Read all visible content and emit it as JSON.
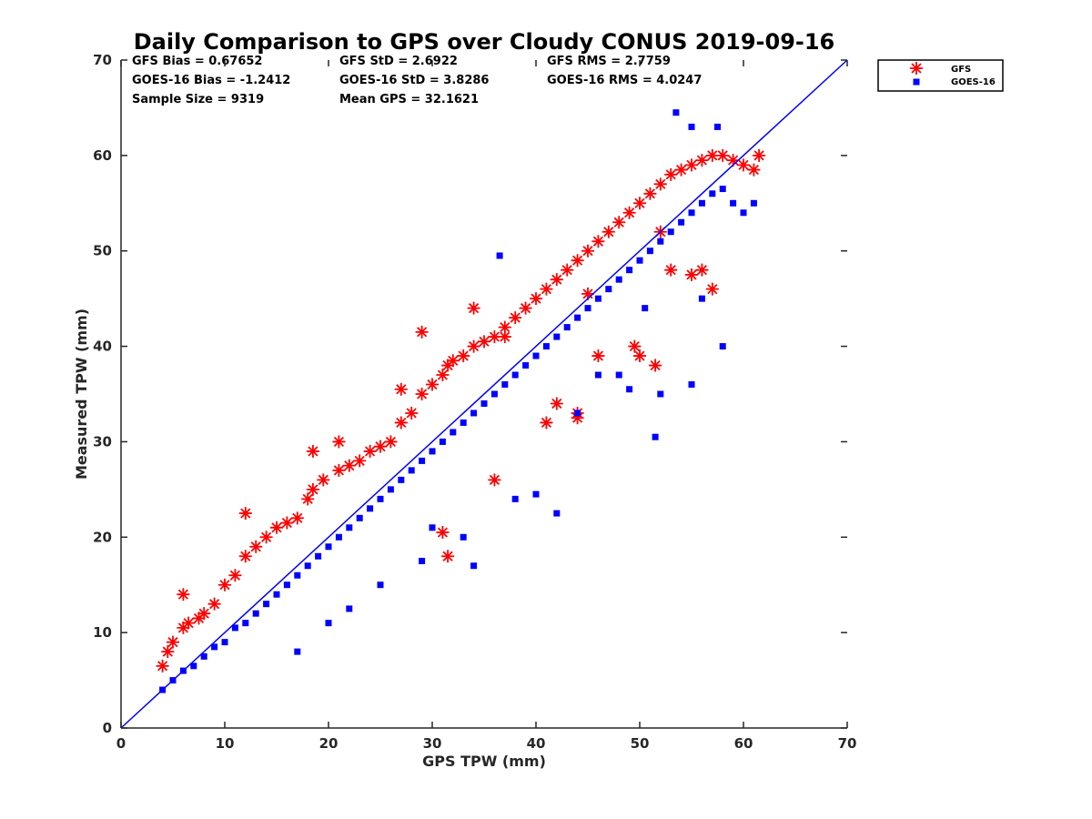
{
  "chart_data": {
    "type": "scatter",
    "title": "Daily Comparison to GPS over Cloudy CONUS 2019-09-16",
    "xlabel": "GPS TPW (mm)",
    "ylabel": "Measured TPW (mm)",
    "xlim": [
      0,
      70
    ],
    "ylim": [
      0,
      70
    ],
    "xticks": [
      "0",
      "10",
      "20",
      "30",
      "40",
      "50",
      "60",
      "70"
    ],
    "yticks": [
      "0",
      "10",
      "20",
      "30",
      "40",
      "50",
      "60",
      "70"
    ],
    "grid": false,
    "legend_position": "outside-top-right",
    "reference_line": {
      "from": [
        0,
        0
      ],
      "to": [
        70,
        70
      ],
      "color": "#0000ff"
    },
    "stats": [
      [
        "GFS Bias = 0.67652",
        "GFS StD = 2.6922",
        "GFS RMS = 2.7759"
      ],
      [
        "GOES-16 Bias = -1.2412",
        "GOES-16 StD = 3.8286",
        "GOES-16 RMS = 4.0247"
      ],
      [
        "Sample Size = 9319",
        "Mean GPS = 32.1621",
        ""
      ]
    ],
    "series": [
      {
        "name": "GFS",
        "marker": "asterisk",
        "color": "#ff0000",
        "sample_size": 9319,
        "x": [
          4,
          4.5,
          5,
          6,
          6.5,
          7.5,
          8,
          9,
          10,
          11,
          12,
          13,
          14,
          15,
          16,
          17,
          18,
          18.5,
          19.5,
          21,
          22,
          23,
          24,
          25,
          26,
          27,
          28,
          29,
          30,
          31,
          31.5,
          32,
          33,
          34,
          35,
          36,
          37,
          38,
          39,
          40,
          41,
          42,
          43,
          44,
          45,
          46,
          47,
          48,
          49,
          50,
          51,
          52,
          53,
          54,
          55,
          56,
          57,
          58,
          59,
          60,
          61,
          61.5,
          6,
          12,
          18.5,
          21,
          27,
          29,
          31,
          31.5,
          34,
          37,
          41,
          44,
          46,
          50,
          53,
          56,
          57,
          52,
          55,
          49.5,
          51.5,
          42,
          44,
          36,
          45
        ],
        "y": [
          6.5,
          8,
          9,
          10.5,
          11,
          11.5,
          12,
          13,
          15,
          16,
          18,
          19,
          20,
          21,
          21.5,
          22,
          24,
          25,
          26,
          27,
          27.5,
          28,
          29,
          29.5,
          30,
          32,
          33,
          35,
          36,
          37,
          38,
          38.5,
          39,
          40,
          40.5,
          41,
          42,
          43,
          44,
          45,
          46,
          47,
          48,
          49,
          50,
          51,
          52,
          53,
          54,
          55,
          56,
          57,
          58,
          58.5,
          59,
          59.5,
          60,
          60,
          59.5,
          59,
          58.5,
          60,
          14,
          22.5,
          29,
          30,
          35.5,
          41.5,
          20.5,
          18,
          44,
          41,
          32,
          33,
          39,
          39,
          48,
          48,
          46,
          52,
          47.5,
          40,
          38,
          34,
          32.5,
          26,
          45.5
        ]
      },
      {
        "name": "GOES-16",
        "marker": "square",
        "color": "#0000ff",
        "sample_size": 9319,
        "x": [
          4,
          5,
          6,
          7,
          8,
          9,
          10,
          11,
          12,
          13,
          14,
          15,
          16,
          17,
          18,
          19,
          20,
          21,
          22,
          23,
          24,
          25,
          26,
          27,
          28,
          29,
          30,
          31,
          32,
          33,
          34,
          35,
          36,
          37,
          38,
          39,
          40,
          41,
          42,
          43,
          44,
          45,
          46,
          47,
          48,
          49,
          50,
          51,
          52,
          53,
          54,
          55,
          56,
          57,
          58,
          59,
          60,
          61,
          51.5,
          53.5,
          55,
          57.5,
          42,
          40,
          34,
          38,
          52,
          55,
          58,
          46,
          49,
          36.5,
          33,
          29,
          17,
          20,
          22,
          25,
          30,
          44,
          48,
          50.5,
          56
        ],
        "y": [
          4,
          5,
          6,
          6.5,
          7.5,
          8.5,
          9,
          10.5,
          11,
          12,
          13,
          14,
          15,
          16,
          17,
          18,
          19,
          20,
          21,
          22,
          23,
          24,
          25,
          26,
          27,
          28,
          29,
          30,
          31,
          32,
          33,
          34,
          35,
          36,
          37,
          38,
          39,
          40,
          41,
          42,
          43,
          44,
          45,
          46,
          47,
          48,
          49,
          50,
          51,
          52,
          53,
          54,
          55,
          56,
          56.5,
          55,
          54,
          55,
          30.5,
          64.5,
          63,
          63,
          22.5,
          24.5,
          17,
          24,
          35,
          36,
          40,
          37,
          35.5,
          49.5,
          20,
          17.5,
          8,
          11,
          12.5,
          15,
          21,
          33,
          37,
          44,
          45
        ]
      }
    ]
  }
}
